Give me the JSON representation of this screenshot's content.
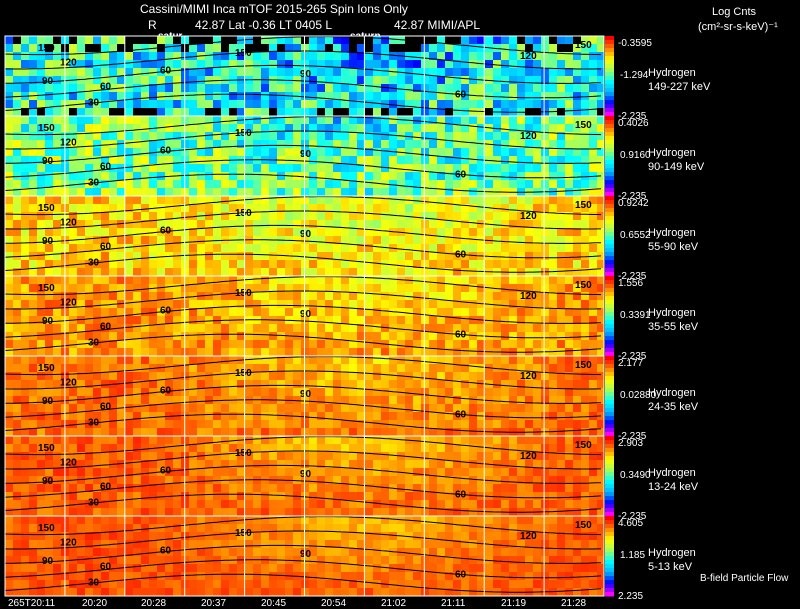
{
  "header": {
    "title": "Cassini/MIMI Inca mTOF  2015-265   Spin   Ions Only",
    "line2_left": "R",
    "line2_mid": "42.87  Lat -0.36  LT 0405  L",
    "line2_right": "42.87   MIMI/APL",
    "saturn_labels": [
      "satur",
      "saturn"
    ],
    "units_title": "Log Cnts",
    "units_sub": "(cm²-sr-s-keV)⁻¹"
  },
  "footer": {
    "time_labels": [
      "265T20:11",
      "20:20",
      "20:28",
      "20:37",
      "20:45",
      "20:54",
      "21:02",
      "21:11",
      "21:19",
      "21:28"
    ],
    "bfield_label": "B-field Particle Flow"
  },
  "chart_data": {
    "type": "heatmap",
    "title": "Cassini/MIMI Inca mTOF  2015-265   Spin   Ions Only",
    "x_ticks": [
      "265T20:11",
      "20:20",
      "20:28",
      "20:37",
      "20:45",
      "20:54",
      "21:02",
      "21:11",
      "21:19",
      "21:28"
    ],
    "contour_labels": [
      "30",
      "60",
      "90",
      "120",
      "150"
    ],
    "colorscale": [
      "#ff00ff",
      "#0000ff",
      "#00b4ff",
      "#00ffff",
      "#a0ff60",
      "#ffff00",
      "#ff8000",
      "#ff0000"
    ],
    "panels": [
      {
        "species": "Hydrogen",
        "energy": "149-227 keV",
        "cb_max": "-0.3595",
        "cb_mid": "-1.294",
        "cb_min": "-2.235"
      },
      {
        "species": "Hydrogen",
        "energy": "90-149 keV",
        "cb_max": "0.4026",
        "cb_mid": "0.9160",
        "cb_min": "-2.235"
      },
      {
        "species": "Hydrogen",
        "energy": "55-90 keV",
        "cb_max": "0.9242",
        "cb_mid": "0.6552",
        "cb_min": "-2.235"
      },
      {
        "species": "Hydrogen",
        "energy": "35-55 keV",
        "cb_max": "1.556",
        "cb_mid": "0.3391",
        "cb_min": "-2.235"
      },
      {
        "species": "Hydrogen",
        "energy": "24-35 keV",
        "cb_max": "2.177",
        "cb_mid": "0.02880",
        "cb_min": "-2.235"
      },
      {
        "species": "Hydrogen",
        "energy": "13-24 keV",
        "cb_max": "2.903",
        "cb_mid": "0.3490",
        "cb_min": "-2.235"
      },
      {
        "species": "Hydrogen",
        "energy": "5-13 keV",
        "cb_max": "4.605",
        "cb_mid": "1.185",
        "cb_min": "2.235"
      }
    ]
  }
}
